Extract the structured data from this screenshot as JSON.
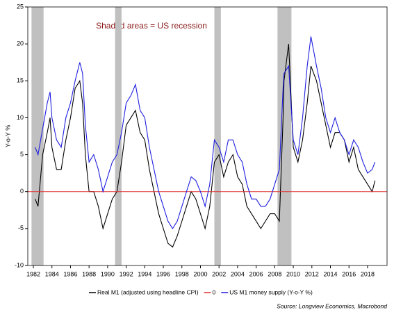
{
  "chart_data": {
    "type": "line",
    "annotation": "Shaded areas = US recession",
    "y_label": "Y-o-Y %",
    "source": "Source: Longview Economics, Macrobond",
    "xlim": [
      1981.4,
      2020.1
    ],
    "ylim": [
      -10,
      25
    ],
    "xticks": [
      1982,
      1984,
      1986,
      1988,
      1990,
      1992,
      1994,
      1996,
      1998,
      2000,
      2002,
      2004,
      2006,
      2008,
      2010,
      2012,
      2014,
      2016,
      2018
    ],
    "yticks": [
      -10,
      -5,
      0,
      5,
      10,
      15,
      20,
      25
    ],
    "recessions": [
      [
        1981.8,
        1983.1
      ],
      [
        1990.8,
        1991.5
      ],
      [
        2001.5,
        2002.2
      ],
      [
        2008.3,
        2009.8
      ]
    ],
    "recession_color": "#c0c0c0",
    "x": [
      1982.2,
      1982.5,
      1983.0,
      1983.5,
      1983.8,
      1984.0,
      1984.5,
      1985.0,
      1985.5,
      1986.0,
      1986.5,
      1987.0,
      1987.3,
      1987.6,
      1988.0,
      1988.5,
      1989.0,
      1989.5,
      1990.0,
      1990.5,
      1991.0,
      1991.5,
      1992.0,
      1992.5,
      1993.0,
      1993.5,
      1994.0,
      1994.5,
      1995.0,
      1995.5,
      1996.0,
      1996.5,
      1997.0,
      1997.5,
      1998.0,
      1998.5,
      1999.0,
      1999.5,
      2000.0,
      2000.5,
      2001.0,
      2001.5,
      2002.0,
      2002.5,
      2003.0,
      2003.5,
      2004.0,
      2004.5,
      2005.0,
      2005.5,
      2006.0,
      2006.5,
      2007.0,
      2007.5,
      2008.0,
      2008.5,
      2008.9,
      2009.0,
      2009.5,
      2010.0,
      2010.5,
      2011.0,
      2011.5,
      2011.9,
      2012.5,
      2013.0,
      2013.5,
      2014.0,
      2014.5,
      2015.0,
      2015.5,
      2016.0,
      2016.5,
      2017.0,
      2017.5,
      2018.0,
      2018.5,
      2018.8
    ],
    "series": [
      {
        "name": "Real M1 (adjusted using headline CPI)",
        "color": "#000000",
        "values": [
          -1,
          -2,
          5,
          8,
          10,
          6,
          3,
          3,
          7,
          10,
          14,
          15,
          12,
          5,
          0,
          0,
          -2,
          -5,
          -3,
          -1,
          0,
          4,
          9,
          10,
          11,
          8,
          7,
          3,
          0,
          -3,
          -5,
          -7,
          -7.5,
          -6,
          -4,
          -2,
          0,
          -1,
          -3,
          -5,
          -2,
          4,
          5,
          2,
          4,
          5,
          2,
          1,
          -2,
          -3,
          -4,
          -5,
          -4,
          -3,
          -3,
          -4,
          10,
          15,
          20,
          6,
          4,
          7,
          12,
          17,
          15,
          12,
          9,
          6,
          8,
          8,
          7,
          4,
          6,
          3,
          2,
          1,
          0,
          1.5
        ]
      },
      {
        "name": "0",
        "color": "#e03030",
        "x": [
          1981.4,
          2020.1
        ],
        "values": [
          0,
          0
        ]
      },
      {
        "name": "US M1 money supply (Y-o-Y %)",
        "color": "#1f1fe0",
        "values": [
          6,
          5,
          8.5,
          12,
          13.5,
          10,
          7,
          6,
          10,
          12,
          15,
          17.5,
          16,
          9,
          4,
          5,
          3,
          0,
          2,
          4,
          5,
          8,
          12,
          13,
          14.5,
          11,
          10,
          6,
          3,
          0,
          -2,
          -4,
          -5,
          -4,
          -2,
          0,
          2,
          1.5,
          0,
          -2,
          1,
          7,
          6,
          4,
          7,
          7,
          5,
          4,
          1,
          -1,
          -1,
          -2,
          -2,
          -1,
          1,
          3,
          14,
          16,
          17,
          7,
          5,
          10,
          17,
          21,
          17,
          14,
          10,
          8,
          10,
          8,
          7,
          5,
          7,
          6,
          4,
          2.5,
          3,
          4
        ]
      }
    ]
  }
}
